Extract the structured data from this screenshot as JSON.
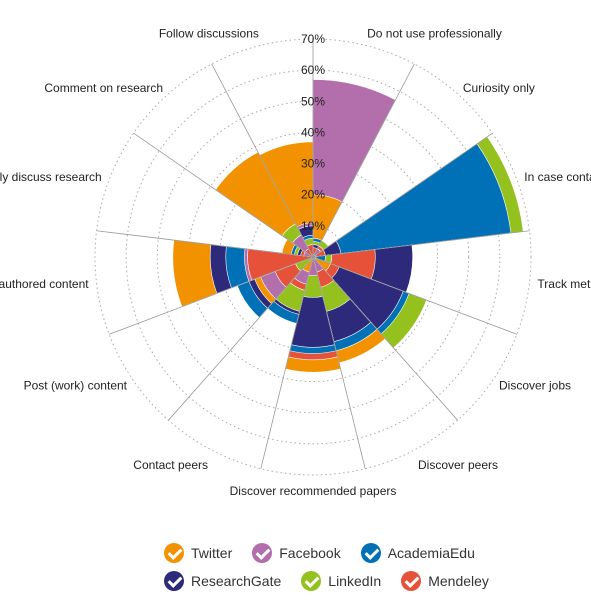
{
  "chart_data": {
    "type": "polar-area",
    "rlim": [
      0,
      70
    ],
    "ticks": [
      "10%",
      "20%",
      "30%",
      "40%",
      "50%",
      "60%",
      "70%"
    ],
    "tick_values": [
      10,
      20,
      30,
      40,
      50,
      60,
      70
    ],
    "categories": [
      "Do not use professionally",
      "Curiosity only",
      "In case contacted",
      "Track metrics",
      "Discover jobs",
      "Discover peers",
      "Discover recommended papers",
      "Contact peers",
      "Post (work) content",
      "Share links to authored content",
      "Actively discuss research",
      "Comment on research",
      "Follow discussions"
    ],
    "series": [
      {
        "name": "Twitter",
        "color": "#f39200",
        "values": [
          20,
          3,
          1,
          6,
          6,
          35,
          37,
          5,
          20,
          45,
          10,
          38,
          37
        ]
      },
      {
        "name": "Facebook",
        "color": "#b36fab",
        "values": [
          57,
          3,
          1,
          1,
          1,
          5,
          6,
          9,
          18,
          22,
          3,
          8,
          11
        ]
      },
      {
        "name": "AcademiaEdu",
        "color": "#0071b6",
        "values": [
          6,
          4,
          64,
          4,
          33,
          31,
          31,
          22,
          26,
          28,
          7,
          12,
          7
        ]
      },
      {
        "name": "ResearchGate",
        "color": "#2d2a7b",
        "values": [
          4,
          4,
          9,
          32,
          31,
          28,
          29,
          19,
          22,
          33,
          5,
          12,
          10
        ]
      },
      {
        "name": "LinkedIn",
        "color": "#95c11f",
        "values": [
          5,
          6,
          68,
          6,
          39,
          18,
          13,
          18,
          6,
          21,
          6,
          12,
          6
        ]
      },
      {
        "name": "Mendeley",
        "color": "#e6513a",
        "values": [
          3,
          4,
          4,
          20,
          9,
          10,
          33,
          11,
          13,
          21,
          4,
          3,
          4
        ]
      }
    ],
    "legend_position": "bottom",
    "grid": true
  }
}
